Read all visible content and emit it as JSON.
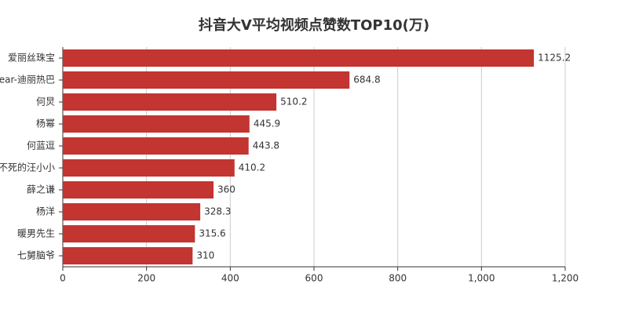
{
  "chart_data": {
    "type": "bar",
    "orientation": "horizontal",
    "title": "抖音大V平均视频点赞数TOP10(万)",
    "categories": [
      "爱丽丝珠宝",
      "ear-迪丽热巴",
      "何炅",
      "杨幂",
      "何蓝逗",
      "不死的汪小小",
      "薛之谦",
      "杨洋",
      "暖男先生",
      "七舅脑爷"
    ],
    "values": [
      1125.2,
      684.8,
      510.2,
      445.9,
      443.8,
      410.2,
      360,
      328.3,
      315.6,
      310
    ],
    "color": "#c23531",
    "xlim": [
      0,
      1200
    ],
    "xticks": [
      0,
      200,
      400,
      600,
      800,
      {
        "value": 1000,
        "label": "1,000"
      },
      {
        "value": 1200,
        "label": "1,200"
      }
    ],
    "grid": true
  }
}
